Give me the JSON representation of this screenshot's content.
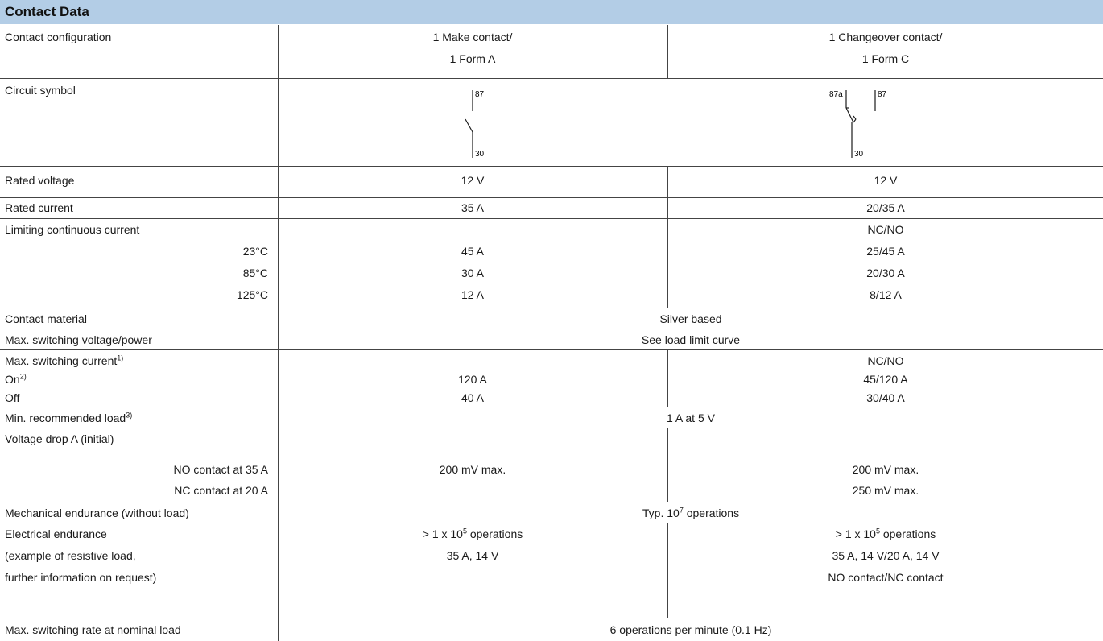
{
  "title": "Contact Data",
  "rows": {
    "config": {
      "label": "Contact configuration",
      "c2a": "1 Make contact/",
      "c2b": "1 Form A",
      "c3a": "1 Changeover contact/",
      "c3b": "1 Form C"
    },
    "symbol": {
      "label": "Circuit symbol",
      "make_top": "87",
      "make_bottom": "30",
      "co_nc": "87a",
      "co_no": "87",
      "co_bottom": "30"
    },
    "rated_voltage": {
      "label": "Rated voltage",
      "c2": "12 V",
      "c3": "12 V"
    },
    "rated_current": {
      "label": "Rated current",
      "c2": "35 A",
      "c3": "20/35 A"
    },
    "limiting": {
      "label": "Limiting continuous current",
      "c3_head": "NC/NO",
      "sub": [
        {
          "label": "23°C",
          "c2": "45 A",
          "c3": "25/45 A"
        },
        {
          "label": "85°C",
          "c2": "30 A",
          "c3": "20/30 A"
        },
        {
          "label": "125°C",
          "c2": "12 A",
          "c3": "8/12 A"
        }
      ]
    },
    "material": {
      "label": "Contact material",
      "value": "Silver based"
    },
    "max_voltage": {
      "label": "Max. switching voltage/power",
      "value": "See load limit curve"
    },
    "max_current": {
      "label": "Max. switching current",
      "note": "1)",
      "c3_head": "NC/NO",
      "on_label": "On",
      "on_note": "2)",
      "on_c2": "120 A",
      "on_c3": "45/120 A",
      "off_label": "Off",
      "off_c2": "40 A",
      "off_c3": "30/40 A"
    },
    "min_load": {
      "label": "Min. recommended load",
      "note": "3)",
      "value": "1 A at 5 V"
    },
    "voltage_drop": {
      "label": "Voltage drop A (initial)",
      "no_label": "NO contact at 35 A",
      "no_c2": "200 mV max.",
      "no_c3": "200 mV max.",
      "nc_label": "NC contact at 20 A",
      "nc_c3": "250 mV max."
    },
    "mech": {
      "label": "Mechanical endurance (without load)",
      "prefix": "Typ. 10",
      "exp": "7",
      "suffix": " operations"
    },
    "elec": {
      "label1": "Electrical endurance",
      "label2": "(example of resistive load,",
      "label3": "further information on request)",
      "c2_prefix": "> 1 x 10",
      "c2_exp": "5",
      "c2_suffix": " operations",
      "c2_line2": "35 A, 14 V",
      "c3_prefix": "> 1 x 10",
      "c3_exp": "5",
      "c3_suffix": " operations",
      "c3_line2": "35 A, 14 V/20 A, 14 V",
      "c3_line3": "NO contact/NC contact"
    },
    "rate": {
      "label": "Max. switching rate at nominal load",
      "value": "6 operations per minute (0.1 Hz)"
    }
  },
  "colors": {
    "header_bg": "#b3cde6",
    "line": "#444444"
  }
}
